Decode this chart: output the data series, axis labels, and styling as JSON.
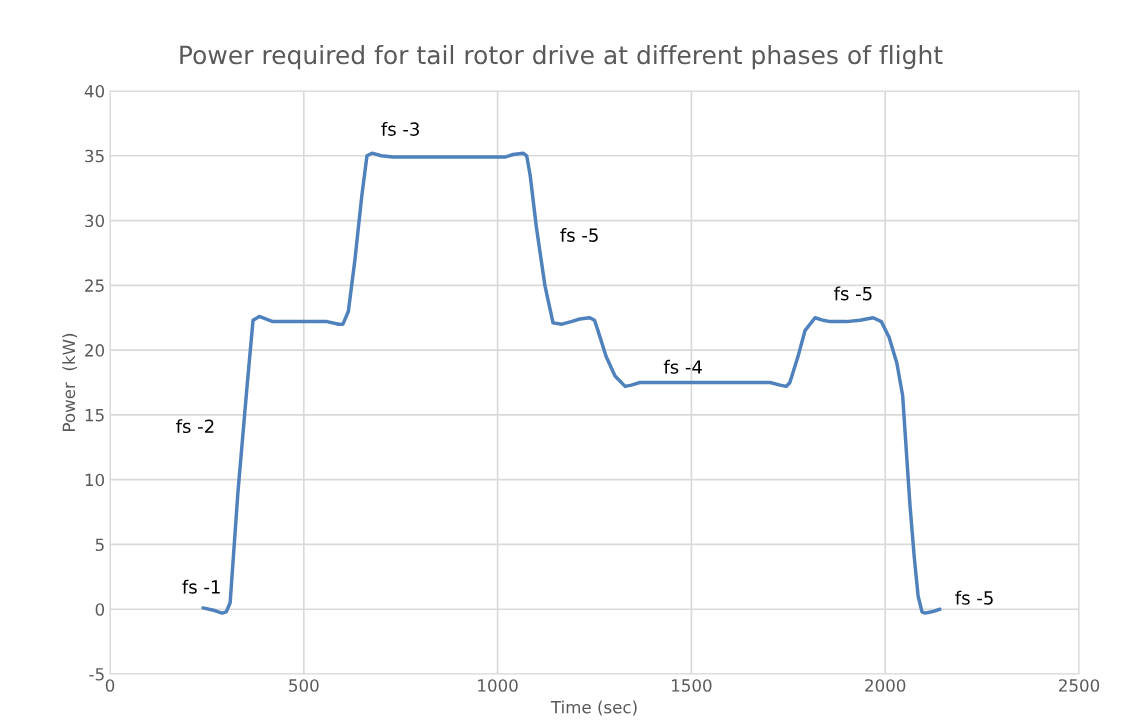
{
  "chart_data": {
    "type": "line",
    "title": "Power required for tail rotor drive at different phases of flight",
    "xlabel": "Time (sec)",
    "ylabel": "Power  (kW)",
    "series": [
      {
        "color": "#4f81bd",
        "line_style": "solid",
        "x": [
          240,
          270,
          289,
          300,
          310,
          330,
          353,
          369,
          385,
          420,
          500,
          560,
          590,
          601,
          615,
          632,
          650,
          663,
          676,
          700,
          730,
          800,
          900,
          1000,
          1019,
          1040,
          1066,
          1075,
          1084,
          1100,
          1122,
          1143,
          1166,
          1190,
          1212,
          1238,
          1250,
          1259,
          1280,
          1303,
          1329,
          1345,
          1367,
          1450,
          1550,
          1650,
          1703,
          1729,
          1745,
          1754,
          1775,
          1793,
          1819,
          1840,
          1858,
          1900,
          1935,
          1969,
          1990,
          2010,
          2030,
          2045,
          2055,
          2064,
          2075,
          2085,
          2095,
          2103,
          2120,
          2141
        ],
        "values": [
          0.1,
          -0.1,
          -0.3,
          -0.2,
          0.5,
          9,
          17,
          22.3,
          22.6,
          22.2,
          22.2,
          22.2,
          22.0,
          22.0,
          23,
          27,
          32,
          35.0,
          35.2,
          35.0,
          34.9,
          34.9,
          34.9,
          34.9,
          34.9,
          35.1,
          35.2,
          35.0,
          33.5,
          29.5,
          25,
          22.1,
          22.0,
          22.2,
          22.4,
          22.5,
          22.3,
          21.5,
          19.5,
          18,
          17.2,
          17.3,
          17.5,
          17.5,
          17.5,
          17.5,
          17.5,
          17.3,
          17.2,
          17.5,
          19.5,
          21.5,
          22.5,
          22.3,
          22.2,
          22.2,
          22.3,
          22.5,
          22.2,
          21,
          19,
          16.5,
          12,
          8,
          4,
          1,
          -0.2,
          -0.3,
          -0.2,
          0.0
        ]
      }
    ],
    "xlim": [
      0,
      2500
    ],
    "ylim": [
      -5,
      40
    ],
    "xticks": [
      0,
      500,
      1000,
      1500,
      2000,
      2500
    ],
    "yticks": [
      -5,
      0,
      5,
      10,
      15,
      20,
      25,
      30,
      35,
      40
    ],
    "grid": true,
    "marker": "none",
    "annotations": [
      {
        "text": "fs -1",
        "x": 240,
        "y": 0.1
      },
      {
        "text": "fs -2",
        "x": 353,
        "y": 17
      },
      {
        "text": "fs -3",
        "x": 800,
        "y": 34.9
      },
      {
        "text": "fs -5",
        "x": 1122,
        "y": 25
      },
      {
        "text": "fs -4",
        "x": 1450,
        "y": 17.5
      },
      {
        "text": "fs -5",
        "x": 1900,
        "y": 22.2
      },
      {
        "text": "fs -5",
        "x": 2141,
        "y": 0.0
      }
    ]
  }
}
